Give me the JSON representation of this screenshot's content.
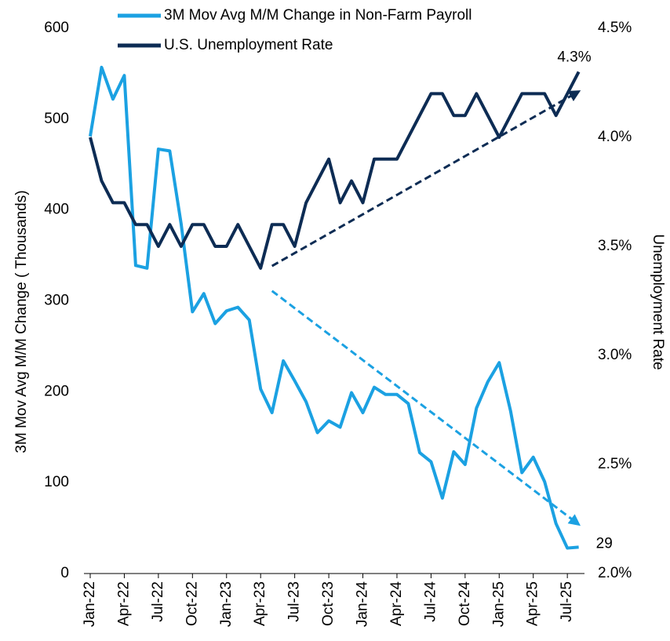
{
  "chart_data": {
    "type": "line",
    "y_label": "3M Mov Avg M/M Change ( Thousands)",
    "y2_label": "Unemployment Rate",
    "categories": [
      "Jan-22",
      null,
      null,
      "Apr-22",
      null,
      null,
      "Jul-22",
      null,
      null,
      "Oct-22",
      null,
      null,
      "Jan-23",
      null,
      null,
      "Apr-23",
      null,
      null,
      "Jul-23",
      null,
      null,
      "Oct-23",
      null,
      null,
      "Jan-24",
      null,
      null,
      "Apr-24",
      null,
      null,
      "Jul-24",
      null,
      null,
      "Oct-24",
      null,
      null,
      "Jan-25",
      null,
      null,
      "Apr-25",
      null,
      null,
      "Jul-25",
      null
    ],
    "ylim": [
      0,
      600
    ],
    "yticks": [
      0,
      100,
      200,
      300,
      400,
      500,
      600
    ],
    "y2lim": [
      2.0,
      4.5
    ],
    "y2ticks": [
      {
        "value": 2.0,
        "label": "2.0%"
      },
      {
        "value": 2.5,
        "label": "2.5%"
      },
      {
        "value": 3.0,
        "label": "3.0%"
      },
      {
        "value": 3.5,
        "label": "3.5%"
      },
      {
        "value": 4.0,
        "label": "4.0%"
      },
      {
        "value": 4.5,
        "label": "4.5%"
      }
    ],
    "legend": "top-left",
    "series": [
      {
        "name": "3M Mov Avg M/M Change in Non-Farm Payroll",
        "color": "#1ba1e2",
        "values": [
          481,
          557,
          522,
          548,
          339,
          336,
          467,
          465,
          385,
          288,
          308,
          275,
          289,
          293,
          279,
          203,
          177,
          234,
          212,
          189,
          155,
          168,
          161,
          199,
          177,
          205,
          197,
          197,
          187,
          133,
          123,
          83,
          134,
          120,
          182,
          211,
          232,
          179,
          111,
          128,
          101,
          55,
          28,
          29
        ],
        "value_labels": [
          null,
          null,
          null,
          null,
          null,
          null,
          null,
          null,
          null,
          null,
          null,
          null,
          null,
          null,
          null,
          null,
          null,
          null,
          null,
          null,
          null,
          null,
          null,
          null,
          null,
          null,
          null,
          null,
          null,
          null,
          null,
          null,
          null,
          null,
          null,
          null,
          null,
          null,
          null,
          null,
          null,
          null,
          null,
          "29"
        ],
        "trend": [
          311,
          54
        ]
      },
      {
        "name": "U.S. Unemployment Rate",
        "color": "#0d2c54",
        "axis": "y2",
        "values": [
          4.0,
          3.8,
          3.7,
          3.7,
          3.6,
          3.6,
          3.5,
          3.6,
          3.5,
          3.6,
          3.6,
          3.5,
          3.5,
          3.6,
          3.5,
          3.4,
          3.6,
          3.6,
          3.5,
          3.7,
          3.8,
          3.9,
          3.7,
          3.8,
          3.7,
          3.9,
          3.9,
          3.9,
          4.0,
          4.1,
          4.2,
          4.2,
          4.1,
          4.1,
          4.2,
          4.1,
          4.0,
          4.1,
          4.2,
          4.2,
          4.2,
          4.1,
          4.2,
          4.3
        ],
        "value_labels": [
          null,
          null,
          null,
          null,
          null,
          null,
          null,
          null,
          null,
          null,
          null,
          null,
          null,
          null,
          null,
          null,
          null,
          null,
          null,
          null,
          null,
          null,
          null,
          null,
          null,
          null,
          null,
          null,
          null,
          null,
          null,
          null,
          null,
          null,
          null,
          null,
          null,
          null,
          null,
          null,
          null,
          null,
          null,
          "4.3%"
        ],
        "trend": [
          3.41,
          4.21
        ]
      }
    ]
  }
}
